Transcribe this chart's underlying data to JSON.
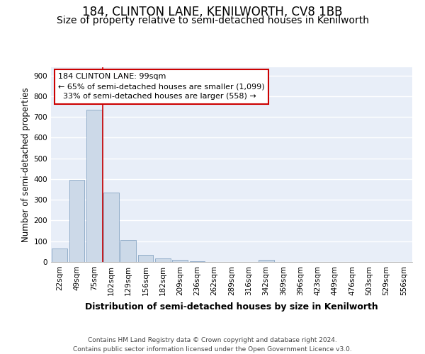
{
  "title": "184, CLINTON LANE, KENILWORTH, CV8 1BB",
  "subtitle": "Size of property relative to semi-detached houses in Kenilworth",
  "xlabel": "Distribution of semi-detached houses by size in Kenilworth",
  "ylabel": "Number of semi-detached properties",
  "categories": [
    "22sqm",
    "49sqm",
    "75sqm",
    "102sqm",
    "129sqm",
    "156sqm",
    "182sqm",
    "209sqm",
    "236sqm",
    "262sqm",
    "289sqm",
    "316sqm",
    "342sqm",
    "369sqm",
    "396sqm",
    "423sqm",
    "449sqm",
    "476sqm",
    "503sqm",
    "529sqm",
    "556sqm"
  ],
  "values": [
    65,
    395,
    735,
    335,
    105,
    33,
    18,
    10,
    5,
    0,
    0,
    0,
    10,
    0,
    0,
    0,
    0,
    0,
    0,
    0,
    0
  ],
  "bar_color": "#ccd9e8",
  "bar_edge_color": "#7799bb",
  "property_line_color": "#cc0000",
  "annotation_text": "184 CLINTON LANE: 99sqm\n← 65% of semi-detached houses are smaller (1,099)\n  33% of semi-detached houses are larger (558) →",
  "annotation_box_color": "#ffffff",
  "annotation_box_edge_color": "#cc0000",
  "ylim": [
    0,
    940
  ],
  "yticks": [
    0,
    100,
    200,
    300,
    400,
    500,
    600,
    700,
    800,
    900
  ],
  "background_color": "#e8eef8",
  "grid_color": "#ffffff",
  "footnote": "Contains HM Land Registry data © Crown copyright and database right 2024.\nContains public sector information licensed under the Open Government Licence v3.0.",
  "title_fontsize": 12,
  "subtitle_fontsize": 10,
  "xlabel_fontsize": 9,
  "ylabel_fontsize": 8.5,
  "tick_fontsize": 7.5,
  "annotation_fontsize": 8,
  "footnote_fontsize": 6.5
}
